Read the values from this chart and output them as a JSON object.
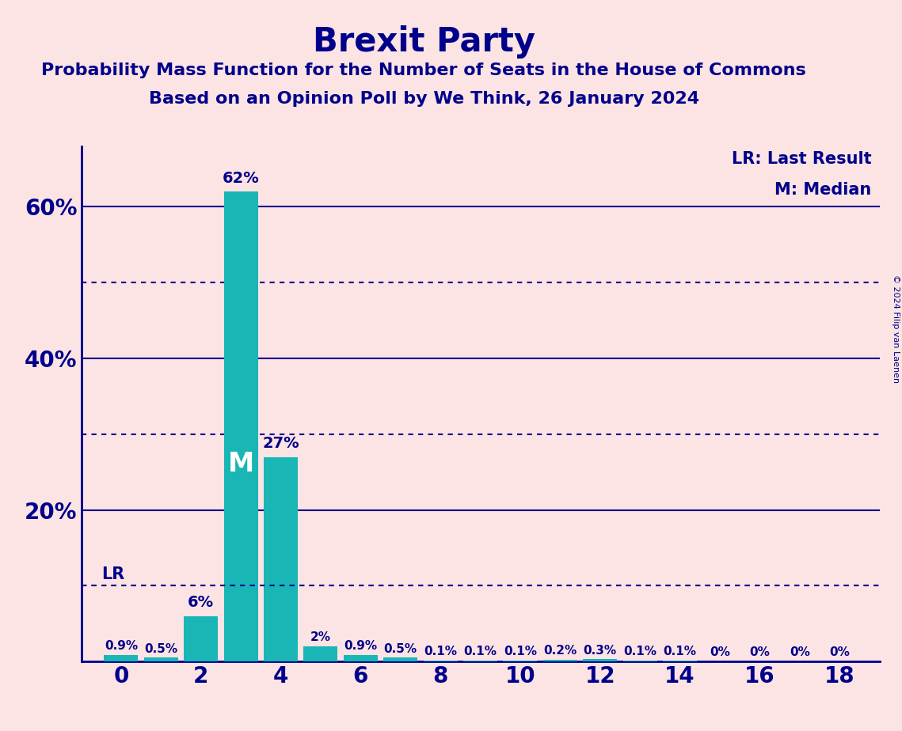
{
  "title": "Brexit Party",
  "subtitle1": "Probability Mass Function for the Number of Seats in the House of Commons",
  "subtitle2": "Based on an Opinion Poll by We Think, 26 January 2024",
  "copyright": "© 2024 Filip van Laenen",
  "background_color": "#fce4e4",
  "bar_color": "#1ab5b5",
  "text_color": "#00008b",
  "seats": [
    0,
    1,
    2,
    3,
    4,
    5,
    6,
    7,
    8,
    9,
    10,
    11,
    12,
    13,
    14,
    15,
    16,
    17,
    18
  ],
  "probabilities": [
    0.9,
    0.5,
    6.0,
    62.0,
    27.0,
    2.0,
    0.9,
    0.5,
    0.1,
    0.1,
    0.1,
    0.2,
    0.3,
    0.1,
    0.1,
    0.0,
    0.0,
    0.0,
    0.0
  ],
  "labels": [
    "0.9%",
    "0.5%",
    "6%",
    "62%",
    "27%",
    "2%",
    "0.9%",
    "0.5%",
    "0.1%",
    "0.1%",
    "0.1%",
    "0.2%",
    "0.3%",
    "0.1%",
    "0.1%",
    "0%",
    "0%",
    "0%",
    "0%"
  ],
  "median": 3,
  "last_result": 0,
  "lr_label": "LR",
  "lr_y": 10,
  "median_label": "M",
  "legend_lr": "LR: Last Result",
  "legend_m": "M: Median",
  "ylim": [
    0,
    68
  ],
  "solid_lines": [
    20,
    40,
    60
  ],
  "dotted_lines": [
    10,
    30,
    50
  ],
  "xticks": [
    0,
    2,
    4,
    6,
    8,
    10,
    12,
    14,
    16,
    18
  ],
  "figsize": [
    11.39,
    9.24
  ],
  "dpi": 100
}
